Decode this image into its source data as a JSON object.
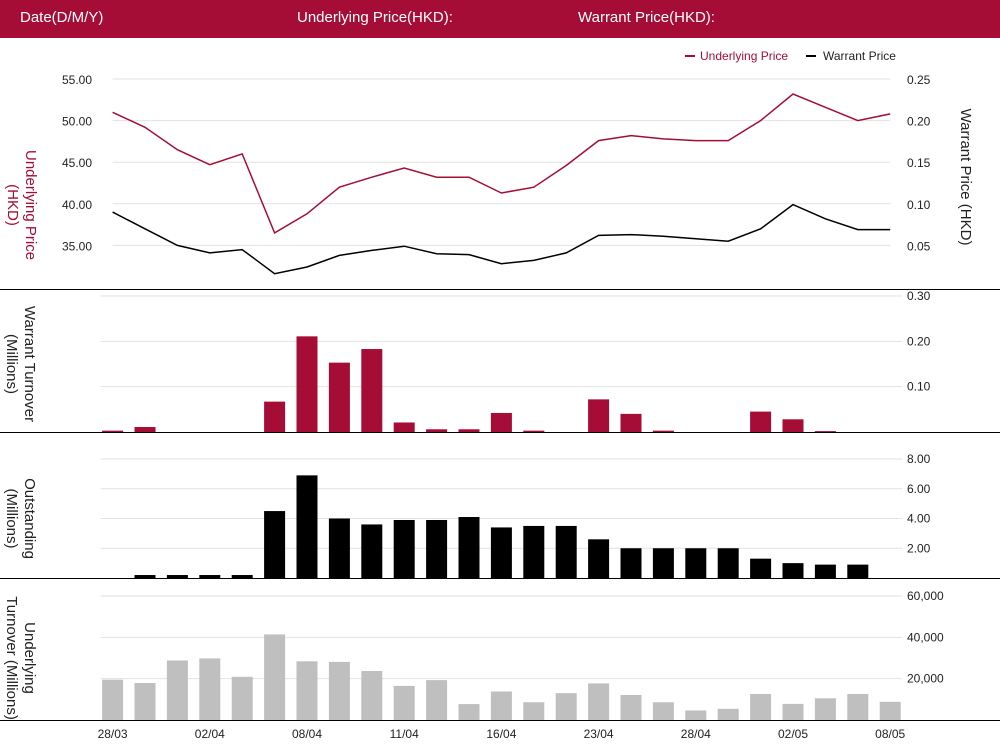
{
  "header": {
    "date_label": "Date(D/M/Y)",
    "underlying_label": "Underlying Price(HKD):",
    "warrant_label": "Warrant Price(HKD):"
  },
  "colors": {
    "header_bg": "#a50d36",
    "underlying": "#a50d36",
    "warrant": "#000000",
    "outstanding": "#000000",
    "turnover": "#bfbfbf",
    "grid": "#e2e2e2"
  },
  "chart_data": [
    {
      "type": "line",
      "legend": [
        "Underlying Price",
        "Warrant Price"
      ],
      "ylabel_left": "Underlying Price (HKD)",
      "ylabel_right": "Warrant  Price (HKD)",
      "yticks_left": [
        "55.00",
        "50.00",
        "45.00",
        "40.00",
        "35.00"
      ],
      "yticks_right": [
        "0.25",
        "0.20",
        "0.15",
        "0.10",
        "0.05"
      ],
      "ylim_left": [
        30,
        55
      ],
      "ylim_right": [
        0,
        0.25
      ],
      "series": [
        {
          "name": "Underlying Price",
          "axis": "left",
          "values": [
            51.0,
            49.2,
            46.5,
            44.7,
            46.0,
            36.5,
            38.8,
            42.0,
            43.2,
            44.3,
            43.2,
            43.2,
            41.3,
            42.0,
            44.6,
            47.6,
            48.2,
            47.8,
            47.6,
            47.6,
            50.0,
            53.2,
            51.6,
            50.0,
            50.8
          ]
        },
        {
          "name": "Warrant Price",
          "axis": "right",
          "values": [
            0.09,
            0.07,
            0.05,
            0.041,
            0.045,
            0.016,
            0.024,
            0.038,
            0.044,
            0.049,
            0.04,
            0.039,
            0.028,
            0.032,
            0.041,
            0.062,
            0.063,
            0.061,
            0.058,
            0.055,
            0.07,
            0.099,
            0.082,
            0.069,
            0.069
          ]
        }
      ]
    },
    {
      "type": "bar",
      "ylabel": "Warrant  Turnover (Millions)",
      "yticks": [
        "0.30",
        "0.20",
        "0.10"
      ],
      "ylim": [
        0,
        0.3
      ],
      "values": [
        0.003,
        0.011,
        0,
        0,
        0,
        0.067,
        0.211,
        0.153,
        0.183,
        0.021,
        0.006,
        0.006,
        0.042,
        0.003,
        0,
        0.072,
        0.04,
        0.003,
        0,
        0,
        0.045,
        0.028,
        0.002,
        0,
        0
      ]
    },
    {
      "type": "bar",
      "ylabel": "Outstanding (Millions)",
      "yticks": [
        "8.00",
        "6.00",
        "4.00",
        "2.00"
      ],
      "ylim": [
        0,
        8
      ],
      "values": [
        0,
        0.2,
        0.2,
        0.2,
        0.2,
        4.5,
        6.9,
        4.0,
        3.6,
        3.9,
        3.9,
        4.1,
        3.4,
        3.5,
        3.5,
        2.6,
        2.0,
        2.0,
        2.0,
        2.0,
        1.3,
        1.0,
        0.9,
        0.9,
        0
      ]
    },
    {
      "type": "bar",
      "ylabel": "Underlying Turnover (Millions)",
      "yticks": [
        "60,000",
        "40,000",
        "20,000"
      ],
      "ylim": [
        0,
        60000
      ],
      "values": [
        19500,
        17900,
        28800,
        29800,
        20900,
        41400,
        28400,
        28100,
        23700,
        16500,
        19300,
        7700,
        13800,
        8600,
        13000,
        17700,
        12100,
        8600,
        4600,
        5400,
        12600,
        7800,
        10500,
        12600,
        8800
      ],
      "x_tick_labels": [
        "28/03",
        "02/04",
        "08/04",
        "11/04",
        "16/04",
        "23/04",
        "28/04",
        "02/05",
        "08/05"
      ]
    }
  ]
}
